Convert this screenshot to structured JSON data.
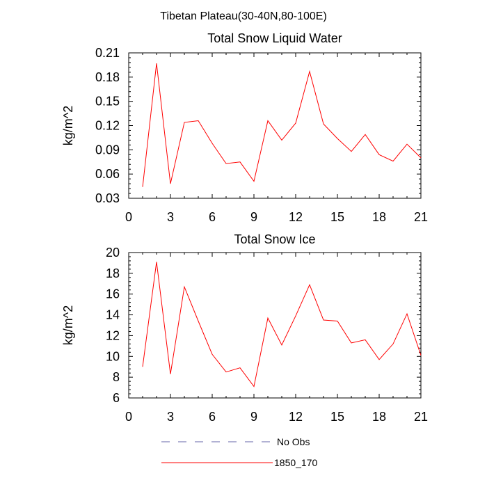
{
  "figure": {
    "suptitle": "Tibetan Plateau(30-40N,80-100E)"
  },
  "chart_data": [
    {
      "type": "line",
      "title": "Total Snow Liquid Water",
      "xlabel": "",
      "ylabel": "kg/m^2",
      "xlim": [
        0,
        21
      ],
      "ylim": [
        0.03,
        0.21
      ],
      "xticks": [
        0,
        3,
        6,
        9,
        12,
        15,
        18,
        21
      ],
      "yticks": [
        0.03,
        0.06,
        0.09,
        0.12,
        0.15,
        0.18,
        0.21
      ],
      "ytick_labels": [
        "0.03",
        "0.06",
        "0.09",
        "0.12",
        "0.15",
        "0.18",
        "0.21"
      ],
      "series": [
        {
          "name": "1850_170",
          "color": "#ff0000",
          "x": [
            1,
            2,
            3,
            4,
            5,
            6,
            7,
            8,
            9,
            10,
            11,
            12,
            13,
            14,
            15,
            16,
            17,
            18,
            19,
            20,
            21
          ],
          "y": [
            0.044,
            0.197,
            0.048,
            0.124,
            0.126,
            0.098,
            0.073,
            0.075,
            0.051,
            0.126,
            0.102,
            0.123,
            0.187,
            0.122,
            0.104,
            0.088,
            0.109,
            0.084,
            0.076,
            0.097,
            0.08
          ]
        }
      ]
    },
    {
      "type": "line",
      "title": "Total Snow Ice",
      "xlabel": "",
      "ylabel": "kg/m^2",
      "xlim": [
        0,
        21
      ],
      "ylim": [
        6,
        20
      ],
      "xticks": [
        0,
        3,
        6,
        9,
        12,
        15,
        18,
        21
      ],
      "yticks": [
        6,
        8,
        10,
        12,
        14,
        16,
        18,
        20
      ],
      "ytick_labels": [
        "6",
        "8",
        "10",
        "12",
        "14",
        "16",
        "18",
        "20"
      ],
      "series": [
        {
          "name": "1850_170",
          "color": "#ff0000",
          "x": [
            1,
            2,
            3,
            4,
            5,
            6,
            7,
            8,
            9,
            10,
            11,
            12,
            13,
            14,
            15,
            16,
            17,
            18,
            19,
            20,
            21
          ],
          "y": [
            9.0,
            19.1,
            8.3,
            16.7,
            13.4,
            10.2,
            8.5,
            8.9,
            7.1,
            13.7,
            11.1,
            13.9,
            16.9,
            13.5,
            13.4,
            11.3,
            11.6,
            9.7,
            11.2,
            14.1,
            10.1
          ]
        }
      ]
    }
  ],
  "legend": {
    "placement": "bottom-center",
    "entries": [
      {
        "label": "No Obs",
        "style": "dashed",
        "color": "#6666aa"
      },
      {
        "label": "1850_170",
        "style": "solid",
        "color": "#ff0000"
      }
    ]
  }
}
